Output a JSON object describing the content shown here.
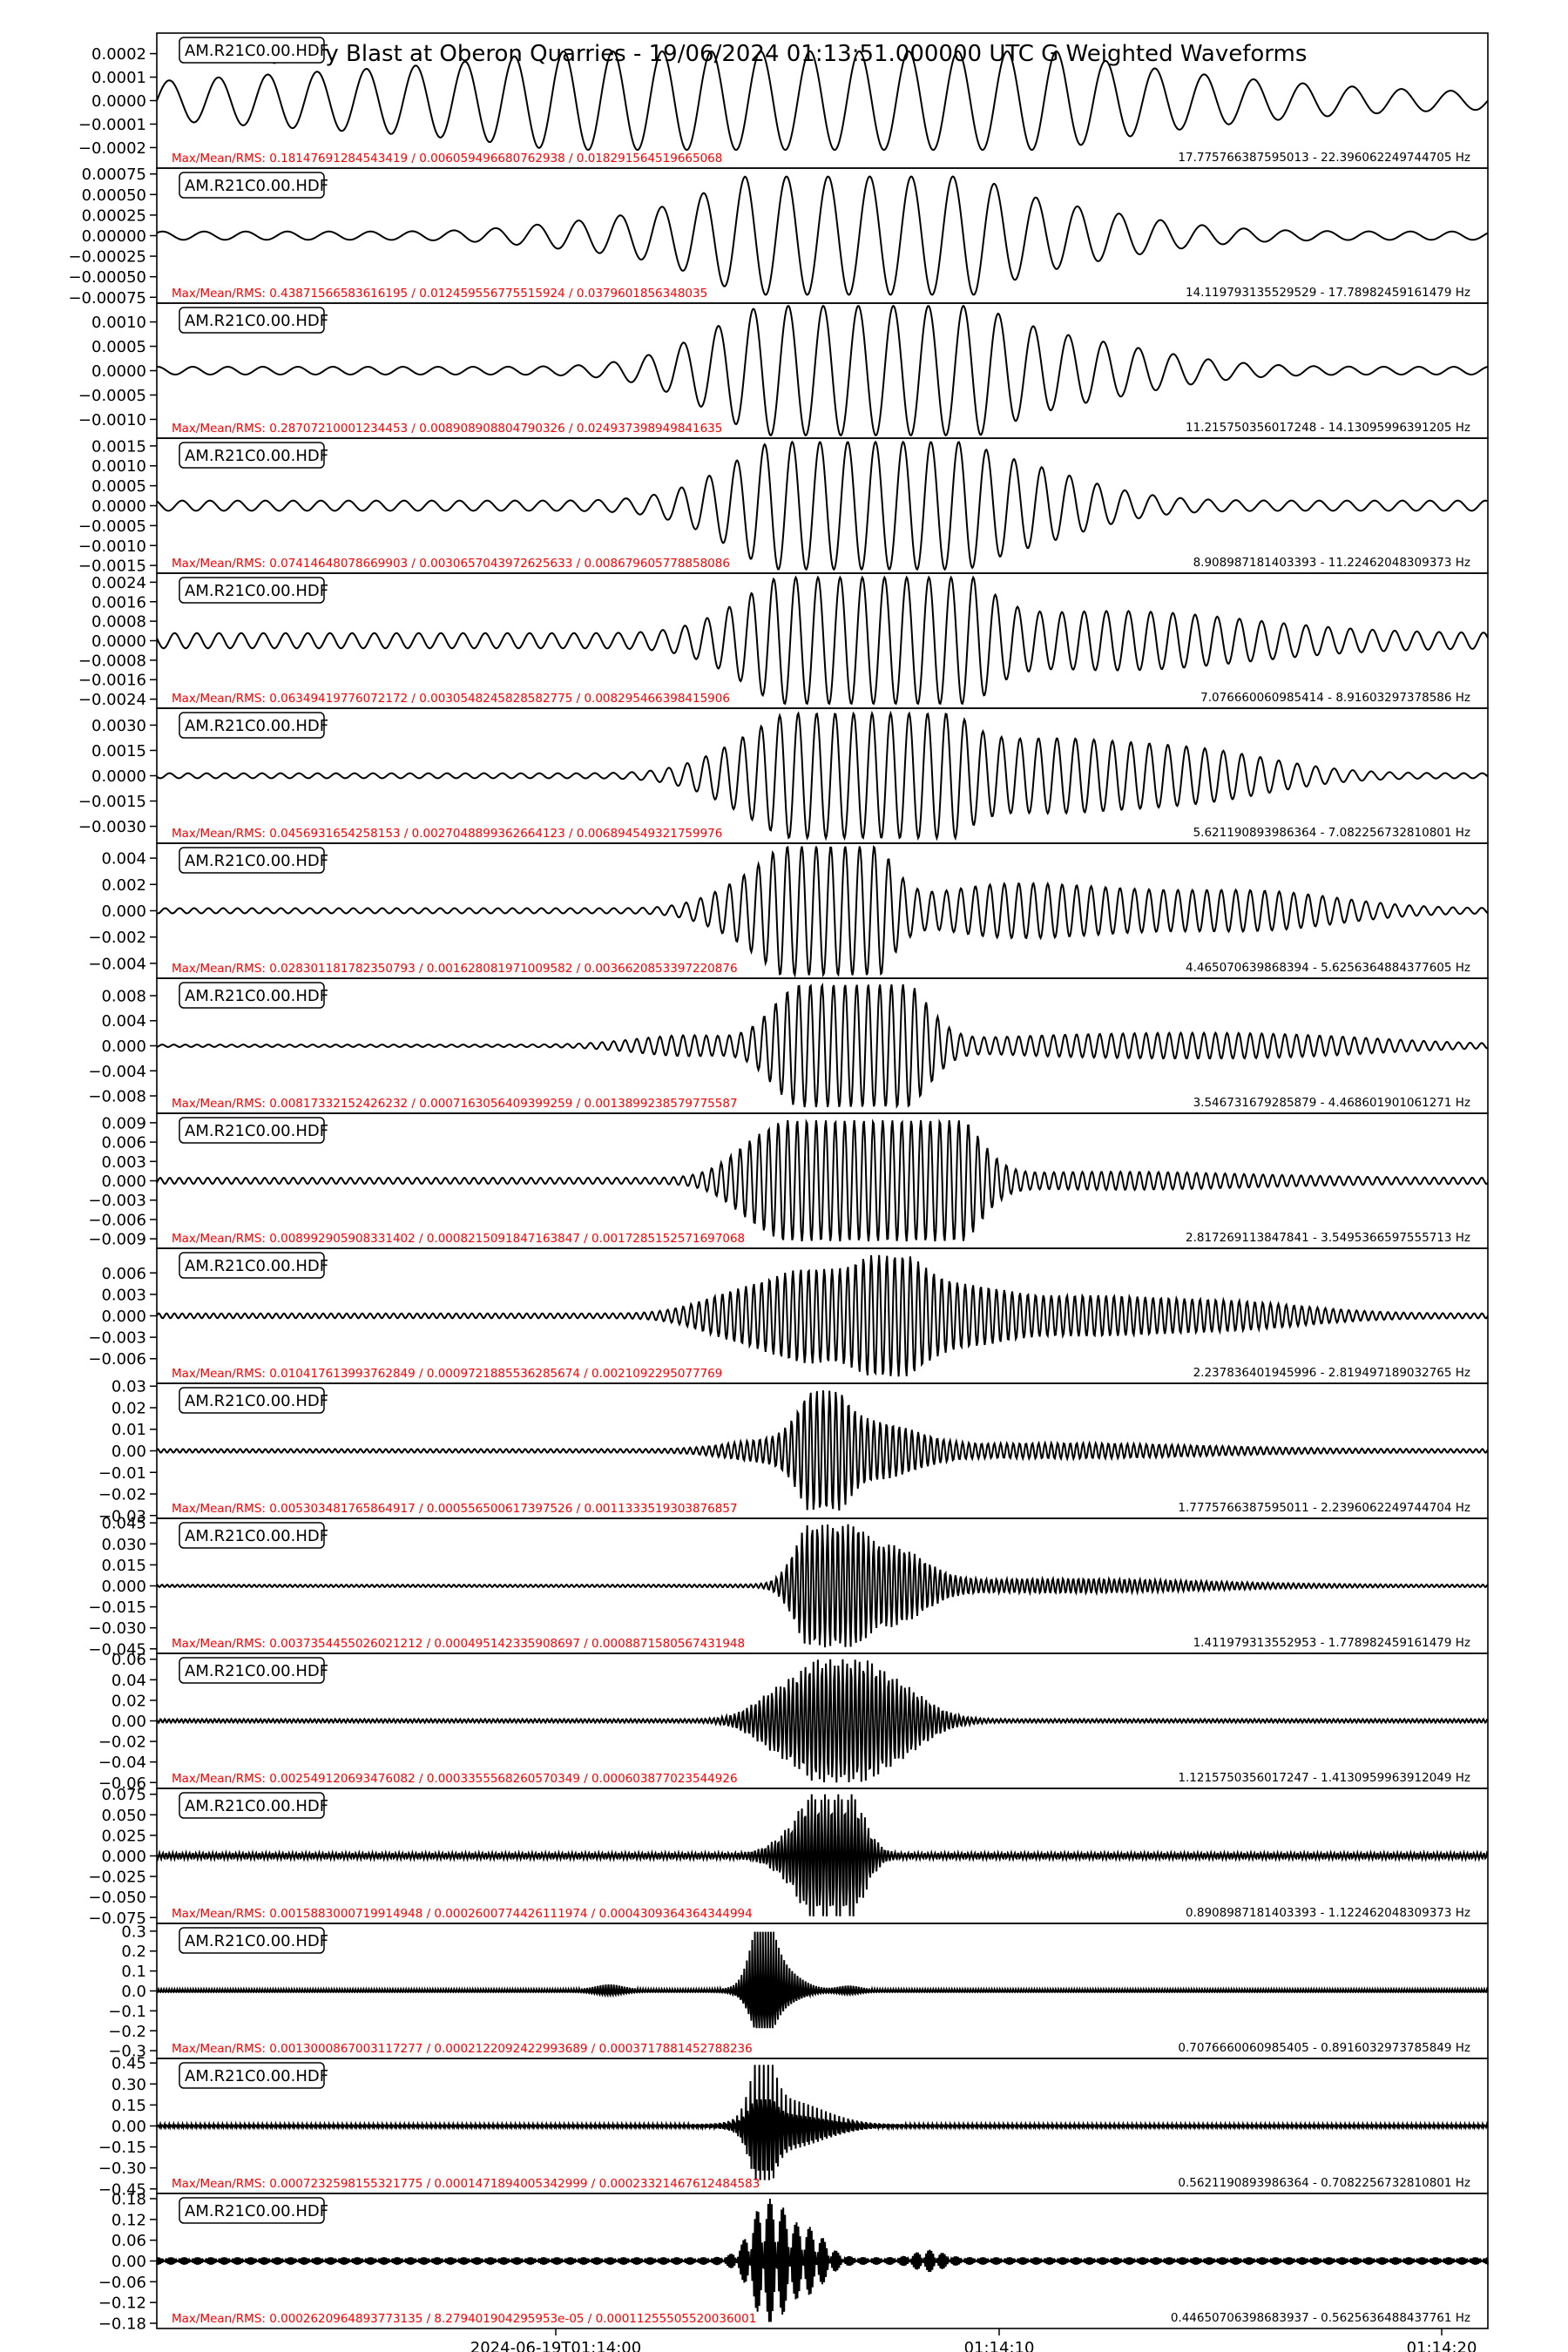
{
  "chart_data": {
    "type": "line",
    "title": "Quarry Blast at Oberon Quarries - 19/06/2024 01:13:51.000000 UTC G Weighted Waveforms",
    "station_label": "AM.R21C0.00.HDF",
    "x_tick_labels": [
      "2024-06-19T01:14:00",
      "01:14:10",
      "01:14:20"
    ],
    "grid": false,
    "legend": "none",
    "colors": {
      "trace": "#000000",
      "stats_text": "#ff0000",
      "band_text": "#000000",
      "frame": "#000000"
    },
    "panels": [
      {
        "stats": "Max/Mean/RMS: 0.18147691284543419 / 0.006059496680762938 / 0.018291564519665068",
        "band": "17.775766387595013 - 22.396062249744705 Hz",
        "yticks": [
          "0.0002",
          "0.0001",
          "0.0000",
          "−0.0001",
          "−0.0002"
        ],
        "ylim": [
          -0.00028,
          0.00028
        ],
        "amplitude": 0.00021,
        "cycles": 27,
        "packets": [
          [
            0.16,
            0.16,
            0.4
          ],
          [
            0.44,
            0.13,
            1.0
          ],
          [
            0.55,
            0.09,
            0.55
          ],
          [
            0.68,
            0.14,
            0.45
          ]
        ],
        "baseline": 0.15
      },
      {
        "stats": "Max/Mean/RMS: 0.43871566583616195 / 0.012459556775515924 / 0.0379601856348035",
        "band": "14.119793135529529 - 17.78982459161479 Hz",
        "yticks": [
          "0.00075",
          "0.00050",
          "0.00025",
          "0.00000",
          "−0.00025",
          "−0.00050",
          "−0.00075"
        ],
        "ylim": [
          -0.0008,
          0.0008
        ],
        "amplitude": 0.00072,
        "cycles": 32,
        "packets": [
          [
            0.32,
            0.05,
            0.12
          ],
          [
            0.48,
            0.07,
            1.0
          ],
          [
            0.56,
            0.05,
            0.7
          ],
          [
            0.65,
            0.08,
            0.45
          ]
        ],
        "baseline": 0.07
      },
      {
        "stats": "Max/Mean/RMS: 0.28707210001234453 / 0.008908908804790326 / 0.024937398949841635",
        "band": "11.215750356017248 - 14.13095996391205 Hz",
        "yticks": [
          "0.0010",
          "0.0005",
          "0.0000",
          "−0.0005",
          "−0.0010"
        ],
        "ylim": [
          -0.00135,
          0.00135
        ],
        "amplitude": 0.00133,
        "cycles": 38,
        "packets": [
          [
            0.48,
            0.06,
            1.0
          ],
          [
            0.58,
            0.05,
            0.8
          ],
          [
            0.68,
            0.07,
            0.4
          ]
        ],
        "baseline": 0.06
      },
      {
        "stats": "Max/Mean/RMS: 0.07414648078669903 / 0.0030657043972625633 / 0.008679605778858086",
        "band": "8.908987181403393 - 11.22462048309373 Hz",
        "yticks": [
          "0.0015",
          "0.0010",
          "0.0005",
          "0.0000",
          "−0.0005",
          "−0.0010",
          "−0.0015"
        ],
        "ylim": [
          -0.00165,
          0.00165
        ],
        "amplitude": 0.0016,
        "cycles": 48,
        "packets": [
          [
            0.48,
            0.05,
            0.9
          ],
          [
            0.55,
            0.04,
            1.0
          ],
          [
            0.63,
            0.06,
            0.6
          ]
        ],
        "baseline": 0.08
      },
      {
        "stats": "Max/Mean/RMS: 0.06349419776072172 / 0.0030548245828582775 / 0.008295466398415906",
        "band": "7.076660060985414 - 8.91603297378586 Hz",
        "yticks": [
          "0.0024",
          "0.0016",
          "0.0008",
          "0.0000",
          "−0.0008",
          "−0.0016",
          "−0.0024"
        ],
        "ylim": [
          -0.0027,
          0.0027
        ],
        "amplitude": 0.0026,
        "cycles": 60,
        "packets": [
          [
            0.47,
            0.04,
            0.6
          ],
          [
            0.53,
            0.04,
            1.0
          ],
          [
            0.59,
            0.03,
            0.8
          ],
          [
            0.72,
            0.1,
            0.35
          ]
        ],
        "baseline": 0.12
      },
      {
        "stats": "Max/Mean/RMS: 0.0456931654258153 / 0.0027048899362664123 / 0.006894549321759976",
        "band": "5.621190893986364 - 7.082256732810801 Hz",
        "yticks": [
          "0.0030",
          "0.0015",
          "0.0000",
          "−0.0015",
          "−0.0030"
        ],
        "ylim": [
          -0.0039,
          0.0039
        ],
        "amplitude": 0.0037,
        "cycles": 72,
        "packets": [
          [
            0.46,
            0.04,
            0.5
          ],
          [
            0.52,
            0.04,
            1.0
          ],
          [
            0.57,
            0.03,
            0.9
          ],
          [
            0.66,
            0.06,
            0.5
          ],
          [
            0.78,
            0.06,
            0.35
          ]
        ],
        "baseline": 0.04
      },
      {
        "stats": "Max/Mean/RMS: 0.028301181782350793 / 0.001628081971009582 / 0.0036620853397220876",
        "band": "4.465070639868394 - 5.6256364884377605 Hz",
        "yticks": [
          "0.004",
          "0.002",
          "0.000",
          "−0.002",
          "−0.004"
        ],
        "ylim": [
          -0.005,
          0.005
        ],
        "amplitude": 0.0049,
        "cycles": 92,
        "packets": [
          [
            0.45,
            0.03,
            0.4
          ],
          [
            0.49,
            0.025,
            0.9
          ],
          [
            0.53,
            0.02,
            1.0
          ],
          [
            0.62,
            0.05,
            0.25
          ],
          [
            0.7,
            0.06,
            0.25
          ],
          [
            0.83,
            0.06,
            0.25
          ]
        ],
        "baseline": 0.04
      },
      {
        "stats": "Max/Mean/RMS: 0.00817332152426232 / 0.0007163056409399259 / 0.0013899238579775587",
        "band": "3.546731679285879 - 4.468601901061271 Hz",
        "yticks": [
          "0.008",
          "0.004",
          "0.000",
          "−0.004",
          "−0.008"
        ],
        "ylim": [
          -0.0105,
          0.0105
        ],
        "amplitude": 0.0098,
        "cycles": 115,
        "packets": [
          [
            0.4,
            0.04,
            0.15
          ],
          [
            0.48,
            0.02,
            0.8
          ],
          [
            0.52,
            0.02,
            1.0
          ],
          [
            0.56,
            0.02,
            0.9
          ],
          [
            0.7,
            0.1,
            0.15
          ],
          [
            0.85,
            0.08,
            0.12
          ]
        ],
        "baseline": 0.02
      },
      {
        "stats": "Max/Mean/RMS: 0.008992905908331402 / 0.0008215091847163847 / 0.0017285152571697068",
        "band": "2.817269113847841 - 3.5495366597555713 Hz",
        "yticks": [
          "0.009",
          "0.006",
          "0.003",
          "0.000",
          "−0.003",
          "−0.006",
          "−0.009"
        ],
        "ylim": [
          -0.0102,
          0.0102
        ],
        "amplitude": 0.0094,
        "cycles": 140,
        "packets": [
          [
            0.46,
            0.025,
            0.7
          ],
          [
            0.5,
            0.02,
            0.85
          ],
          [
            0.52,
            0.02,
            0.7
          ],
          [
            0.56,
            0.025,
            1.0
          ],
          [
            0.6,
            0.02,
            0.8
          ],
          [
            0.72,
            0.1,
            0.1
          ]
        ],
        "baseline": 0.05
      },
      {
        "stats": "Max/Mean/RMS: 0.010417613993762849 / 0.0009721885536285674 / 0.0021092295077769",
        "band": "2.237836401945996 - 2.819497189032765 Hz",
        "yticks": [
          "0.006",
          "0.003",
          "0.000",
          "−0.003",
          "−0.006"
        ],
        "ylim": [
          -0.0092,
          0.0092
        ],
        "amplitude": 0.0085,
        "cycles": 170,
        "packets": [
          [
            0.44,
            0.03,
            0.35
          ],
          [
            0.49,
            0.025,
            0.6
          ],
          [
            0.55,
            0.025,
            1.0
          ],
          [
            0.61,
            0.03,
            0.35
          ],
          [
            0.69,
            0.05,
            0.25
          ],
          [
            0.8,
            0.06,
            0.2
          ]
        ],
        "baseline": 0.04
      },
      {
        "stats": "Max/Mean/RMS: 0.005303481765864917 / 0.000556500617397526 / 0.0011333519303876857",
        "band": "1.7775766387595011 - 2.2396062249744704 Hz",
        "yticks": [
          "0.03",
          "0.02",
          "0.01",
          "0.00",
          "−0.01",
          "−0.02",
          "−0.03"
        ],
        "ylim": [
          -0.0305,
          0.0305
        ],
        "amplitude": 0.028,
        "cycles": 210,
        "packets": [
          [
            0.46,
            0.03,
            0.15
          ],
          [
            0.5,
            0.015,
            1.0
          ],
          [
            0.54,
            0.03,
            0.4
          ],
          [
            0.68,
            0.1,
            0.1
          ]
        ],
        "baseline": 0.03
      },
      {
        "stats": "Max/Mean/RMS: 0.0037354455026021212 / 0.000495142335908697 / 0.0008871580567431948",
        "band": "1.411979313552953 - 1.778982459161479 Hz",
        "yticks": [
          "0.045",
          "0.030",
          "0.015",
          "0.000",
          "−0.015",
          "−0.030",
          "−0.045"
        ],
        "ylim": [
          -0.047,
          0.047
        ],
        "amplitude": 0.044,
        "cycles": 260,
        "packets": [
          [
            0.49,
            0.012,
            0.85
          ],
          [
            0.515,
            0.012,
            1.0
          ],
          [
            0.55,
            0.025,
            0.6
          ],
          [
            0.68,
            0.1,
            0.1
          ]
        ],
        "baseline": 0.02
      },
      {
        "stats": "Max/Mean/RMS: 0.002549120693476082 / 0.0003355568260570349 / 0.000603877023544926",
        "band": "1.1215750356017247 - 1.4130959963912049 Hz",
        "yticks": [
          "0.06",
          "0.04",
          "0.02",
          "0.00",
          "−0.02",
          "−0.04",
          "−0.06"
        ],
        "ylim": [
          -0.064,
          0.064
        ],
        "amplitude": 0.06,
        "cycles": 320,
        "packets": [
          [
            0.47,
            0.02,
            0.45
          ],
          [
            0.51,
            0.02,
            1.0
          ],
          [
            0.55,
            0.025,
            0.6
          ]
        ],
        "baseline": 0.03
      },
      {
        "stats": "Max/Mean/RMS: 0.0015883000719914948 / 0.0002600774426111974 / 0.0004309364364344994",
        "band": "0.8908987181403393 - 1.122462048309373 Hz",
        "yticks": [
          "0.075",
          "0.050",
          "0.025",
          "0.000",
          "−0.025",
          "−0.050",
          "−0.075"
        ],
        "ylim": [
          -0.08,
          0.08
        ],
        "amplitude": 0.075,
        "cycles": 400,
        "packets": [
          [
            0.5,
            0.012,
            1.0
          ],
          [
            0.52,
            0.012,
            0.9
          ],
          [
            0.48,
            0.015,
            0.35
          ]
        ],
        "baseline": 0.05
      },
      {
        "stats": "Max/Mean/RMS: 0.0013000867003117277 / 0.0002122092422993689 / 0.0003717881452788236",
        "band": "0.7076660060985405 - 0.8916032973785849 Hz",
        "yticks": [
          "0.3",
          "0.2",
          "0.1",
          "0.0",
          "−0.1",
          "−0.2",
          "−0.3"
        ],
        "ylim": [
          -0.33,
          0.33
        ],
        "amplitude": 0.3,
        "cycles": 500,
        "packets": [
          [
            0.455,
            0.008,
            1.0
          ],
          [
            0.465,
            0.015,
            0.4
          ],
          [
            0.34,
            0.01,
            0.08
          ],
          [
            0.52,
            0.008,
            0.06
          ]
        ],
        "baseline": 0.03
      },
      {
        "stats": "Max/Mean/RMS: 0.0007232598155321775 / 0.0001471894005342999 / 0.00023321467612484583",
        "band": "0.5621190893986364 - 0.7082256732810801 Hz",
        "yticks": [
          "0.45",
          "0.30",
          "0.15",
          "0.00",
          "−0.15",
          "−0.30",
          "−0.45"
        ],
        "ylim": [
          -0.47,
          0.47
        ],
        "amplitude": 0.44,
        "cycles": 600,
        "packets": [
          [
            0.455,
            0.008,
            1.0
          ],
          [
            0.47,
            0.02,
            0.35
          ],
          [
            0.5,
            0.02,
            0.12
          ]
        ],
        "baseline": 0.03
      },
      {
        "stats": "Max/Mean/RMS: 0.0002620964893773135 / 8.279401904295953e-05 / 0.00011255505520036001",
        "band": "0.44650706398683937 - 0.5625636488437761 Hz",
        "yticks": [
          "0.18",
          "0.12",
          "0.06",
          "0.00",
          "−0.06",
          "−0.12",
          "−0.18"
        ],
        "ylim": [
          -0.19,
          0.19
        ],
        "amplitude": 0.18,
        "cycles": 700,
        "packets": [
          [
            0.46,
            0.012,
            1.0
          ],
          [
            0.49,
            0.012,
            0.45
          ],
          [
            0.58,
            0.01,
            0.12
          ]
        ],
        "baseline": 0.06
      }
    ]
  }
}
